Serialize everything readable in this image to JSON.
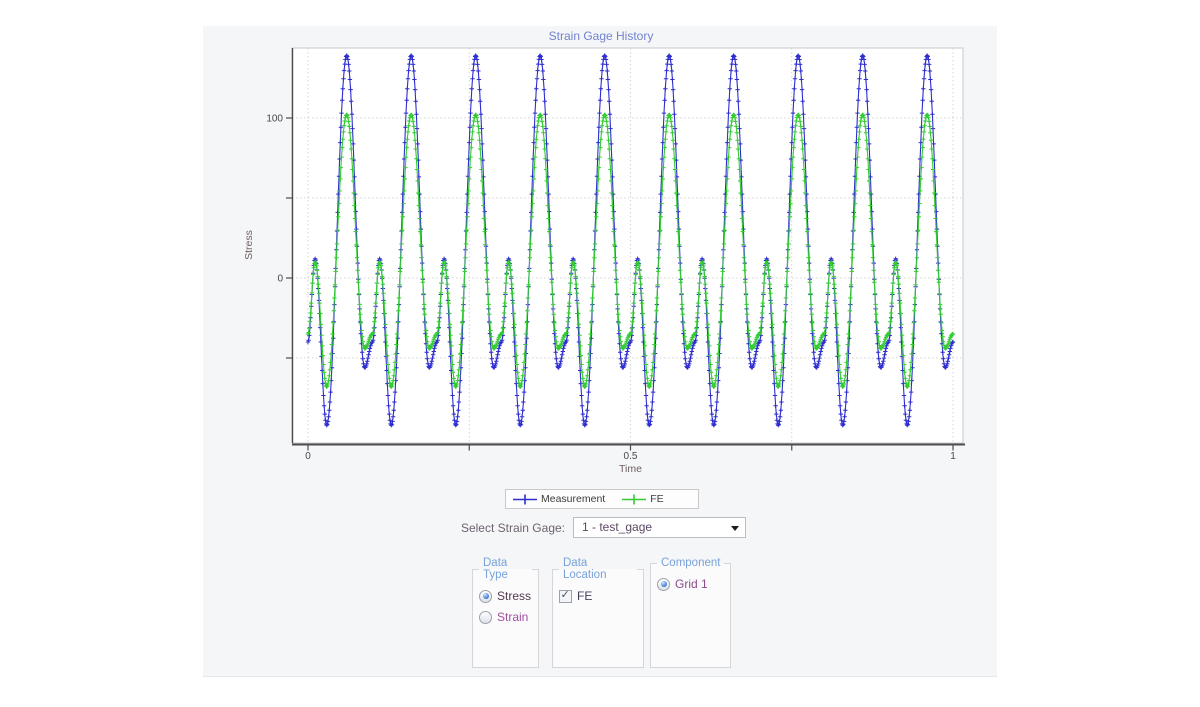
{
  "page": {
    "bg": "#ffffff",
    "panel_bg": "#f5f6f7"
  },
  "colors": {
    "title": "#7282cd",
    "group_header": "#79a2d9",
    "measurement_series": "#2e2ed0",
    "fe_series": "#33cc33",
    "axis_line": "#4c4c50",
    "grid_line": "#d4d4d6",
    "tick_label": "#48484a",
    "axis_title": "#6e5e60"
  },
  "chart_data": {
    "type": "line",
    "title": "Strain Gage History",
    "xlabel": "Time",
    "ylabel": "Stress",
    "xlim": [
      -0.025,
      1.016
    ],
    "ylim": [
      -103,
      144
    ],
    "grid": true,
    "legend_position": "bottom-center",
    "x_ticks": [
      {
        "v": 0,
        "label": "0"
      },
      {
        "v": 0.25,
        "label": ""
      },
      {
        "v": 0.5,
        "label": "0.5"
      },
      {
        "v": 0.75,
        "label": ""
      },
      {
        "v": 1,
        "label": "1"
      }
    ],
    "y_ticks": [
      {
        "v": 100,
        "label": "100"
      },
      {
        "v": 50,
        "label": ""
      },
      {
        "v": 0,
        "label": "0"
      },
      {
        "v": -50,
        "label": ""
      }
    ],
    "series": [
      {
        "name": "Measurement",
        "color": "#2e2ed0",
        "marker": "plus",
        "period": 0.1,
        "cycles": 10,
        "samples_per_period": 100,
        "keypoints_per_period": [
          [
            0,
            -40
          ],
          [
            0.011,
            12
          ],
          [
            0.029,
            -92
          ],
          [
            0.06,
            139
          ],
          [
            0.088,
            -56
          ]
        ]
      },
      {
        "name": "FE",
        "color": "#33cc33",
        "marker": "plus",
        "period": 0.1,
        "cycles": 10,
        "samples_per_period": 100,
        "keypoints_per_period": [
          [
            0,
            -35
          ],
          [
            0.011,
            10
          ],
          [
            0.029,
            -68
          ],
          [
            0.06,
            102
          ],
          [
            0.088,
            -44
          ]
        ]
      }
    ]
  },
  "legend": {
    "items": [
      {
        "label": "Measurement",
        "color": "#2e2ed0"
      },
      {
        "label": "FE",
        "color": "#33cc33"
      }
    ]
  },
  "gage_selector": {
    "label": "Select Strain Gage:",
    "value": "1 - test_gage"
  },
  "option_groups": [
    {
      "title": "Data Type",
      "options": [
        {
          "type": "radio",
          "label": "Stress",
          "checked": true,
          "color": "#53394f"
        },
        {
          "type": "radio",
          "label": "Strain",
          "checked": false,
          "color": "#a14fa1"
        }
      ]
    },
    {
      "title": "Data Location",
      "options": [
        {
          "type": "checkbox",
          "label": "FE",
          "checked": true,
          "color": "#453f5c"
        }
      ]
    },
    {
      "title": "Component",
      "options": [
        {
          "type": "radio",
          "label": "Grid 1",
          "checked": true,
          "color": "#8c4a8c"
        }
      ]
    }
  ]
}
